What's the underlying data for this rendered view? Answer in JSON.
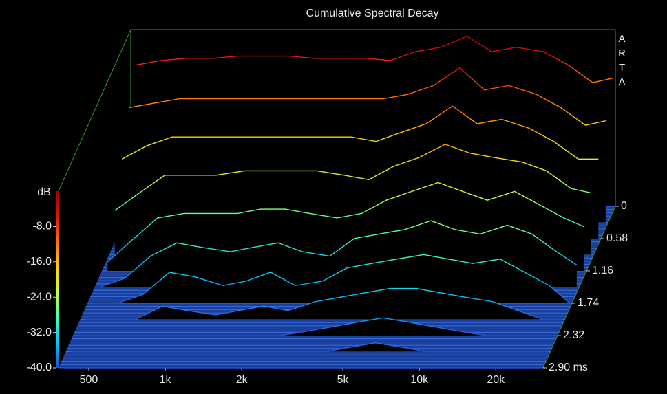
{
  "chart_data": {
    "type": "waterfall",
    "title": "Cumulative Spectral Decay",
    "watermark": "ARTA",
    "ylabel": "dB",
    "x": [
      400,
      500,
      630,
      800,
      1000,
      1300,
      1600,
      2000,
      2500,
      3200,
      4000,
      5000,
      6300,
      8000,
      10000,
      12500,
      16000,
      20000,
      25000,
      30000
    ],
    "xlim": [
      380,
      30700
    ],
    "log_x": true,
    "xticks": [
      500,
      {
        "value": 1000,
        "label": "1k"
      },
      {
        "value": 2000,
        "label": "2k"
      },
      {
        "value": 5000,
        "label": "5k"
      },
      {
        "value": 10000,
        "label": "10k"
      },
      {
        "value": 20000,
        "label": "20k"
      }
    ],
    "ylim": [
      -40,
      0
    ],
    "yticks": [
      {
        "value": -40,
        "label": "-40.0"
      },
      {
        "value": -32,
        "label": "-32.0"
      },
      {
        "value": -24,
        "label": "-24.0"
      },
      {
        "value": -16,
        "label": "-16.0"
      },
      {
        "value": -8,
        "label": "-8.0"
      }
    ],
    "zlim": [
      0,
      2.9
    ],
    "zticks": [
      0,
      0.58,
      1.16,
      1.74,
      2.32,
      {
        "value": 2.9,
        "label": "2.90 ms"
      }
    ],
    "colorscale": [
      "#1f4fd0",
      "#00c8ff",
      "#40ffb0",
      "#c8ff30",
      "#ffd000",
      "#ff7000",
      "#e01010",
      "#a00000"
    ],
    "slices": [
      {
        "t": 0,
        "values": [
          -8,
          -7,
          -6.5,
          -6.5,
          -6,
          -6,
          -6,
          -6.5,
          -6.5,
          -6.5,
          -7,
          -5,
          -4,
          -1.5,
          -5,
          -4,
          -5,
          -8,
          -12,
          -11
        ]
      },
      {
        "t": 0.29,
        "values": [
          -14,
          -13,
          -12,
          -12,
          -12,
          -12,
          -12,
          -12,
          -12,
          -12,
          -12,
          -11,
          -9,
          -5,
          -10,
          -9,
          -11,
          -14,
          -18,
          -17
        ]
      },
      {
        "t": 0.58,
        "values": [
          -22,
          -19,
          -17,
          -17,
          -17,
          -17,
          -17,
          -17,
          -17,
          -17,
          -18,
          -16,
          -14,
          -10,
          -14,
          -13,
          -15,
          -18,
          -22,
          -22
        ]
      },
      {
        "t": 0.87,
        "values": [
          -30,
          -26,
          -22,
          -22,
          -22,
          -21,
          -21,
          -21,
          -21,
          -22,
          -23,
          -20,
          -18,
          -15,
          -17,
          -18,
          -19,
          -21,
          -25,
          -26
        ]
      },
      {
        "t": 1.16,
        "values": [
          -38,
          -33,
          -28,
          -27,
          -27,
          -27,
          -26,
          -26,
          -27,
          -28,
          -27,
          -24,
          -22,
          -20,
          -22,
          -24,
          -22,
          -25,
          -28,
          -30
        ]
      },
      {
        "t": 1.45,
        "values": [
          -40,
          -38,
          -33,
          -30,
          -31,
          -32,
          -31,
          -30,
          -32,
          -33,
          -29,
          -28,
          -27,
          -25,
          -27,
          -28,
          -26,
          -28,
          -32,
          -35
        ]
      },
      {
        "t": 1.74,
        "values": [
          -40,
          -40,
          -38,
          -33,
          -34,
          -36,
          -35,
          -33,
          -36,
          -35,
          -32,
          -31,
          -30,
          -29,
          -30,
          -31,
          -30,
          -33,
          -36,
          -40
        ]
      },
      {
        "t": 2.03,
        "values": [
          -40,
          -40,
          -40,
          -37,
          -38,
          -39,
          -38,
          -37,
          -38,
          -36,
          -35,
          -34,
          -33,
          -33,
          -34,
          -35,
          -36,
          -38,
          -40,
          -40
        ]
      },
      {
        "t": 2.32,
        "values": [
          -40,
          -40,
          -40,
          -40,
          -40,
          -40,
          -40,
          -40,
          -40,
          -39,
          -38,
          -37,
          -36,
          -37,
          -38,
          -39,
          -40,
          -40,
          -40,
          -40
        ]
      },
      {
        "t": 2.61,
        "values": [
          -40,
          -40,
          -40,
          -40,
          -40,
          -40,
          -40,
          -40,
          -40,
          -40,
          -40,
          -39,
          -38,
          -39,
          -40,
          -40,
          -40,
          -40,
          -40,
          -40
        ]
      },
      {
        "t": 2.9,
        "values": [
          -40,
          -40,
          -40,
          -40,
          -40,
          -40,
          -40,
          -40,
          -40,
          -40,
          -40,
          -40,
          -40,
          -40,
          -40,
          -40,
          -40,
          -40,
          -40,
          -40
        ]
      }
    ]
  }
}
